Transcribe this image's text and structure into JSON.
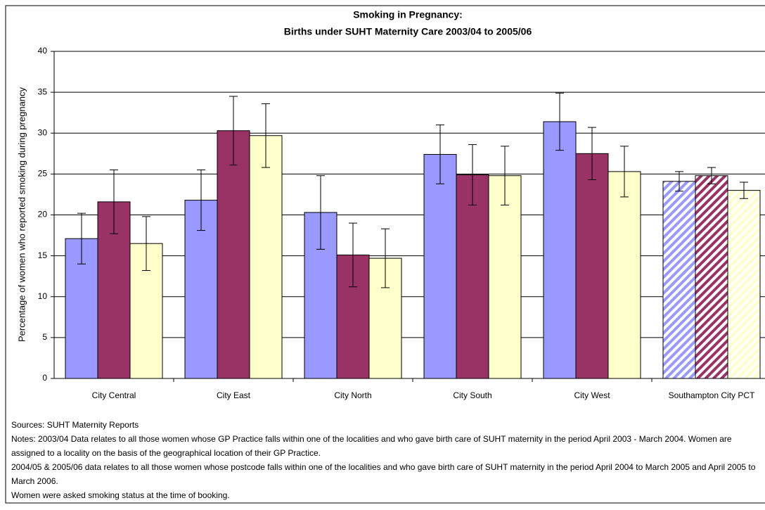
{
  "chart_data": {
    "type": "bar",
    "title": [
      "Smoking in Pregnancy:",
      "Births under SUHT Maternity Care 2003/04 to 2005/06"
    ],
    "y_label": "Percentage of women who reported smoking during pregnancy",
    "categories": [
      "City Central",
      "City East",
      "City North",
      "City South",
      "City West",
      "Southampton City PCT"
    ],
    "series": [
      {
        "color": "#9999ff",
        "values": [
          17.1,
          21.8,
          20.3,
          27.4,
          31.4,
          24.1
        ],
        "errors": [
          3.1,
          3.7,
          4.5,
          3.6,
          3.5,
          1.2
        ]
      },
      {
        "color": "#993366",
        "values": [
          21.6,
          30.3,
          15.1,
          24.9,
          27.5,
          24.8
        ],
        "errors": [
          3.9,
          4.2,
          3.9,
          3.7,
          3.2,
          1.0
        ]
      },
      {
        "color": "#ffffcc",
        "values": [
          16.5,
          29.7,
          14.7,
          24.8,
          25.3,
          23.0
        ],
        "errors": [
          3.3,
          3.9,
          3.6,
          3.6,
          3.1,
          1.0
        ]
      }
    ],
    "hatched_categories": [
      5
    ],
    "ylim": [
      0,
      40
    ],
    "yticks": [
      0,
      5,
      10,
      15,
      20,
      25,
      30,
      35,
      40
    ],
    "grid": true,
    "notes": [
      "Sources: SUHT Maternity Reports",
      "Notes: 2003/04 Data relates to all those women whose GP Practice falls within one of the localities and who gave birth care of SUHT maternity in the period April 2003 - March 2004. Women are assigned to a locality on the basis of the geographical location of their GP Practice.",
      "2004/05 & 2005/06 data relates to all those women whose postcode falls within one of the localities and who gave birth care of SUHT maternity in the period April 2004 to March 2005 and April 2005 to March 2006.",
      "Women were asked smoking status at the time of booking."
    ]
  }
}
